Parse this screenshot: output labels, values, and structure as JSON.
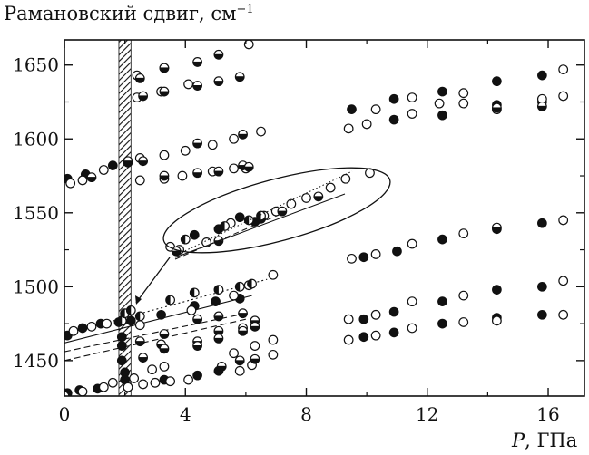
{
  "chart_data": {
    "type": "scatter",
    "ylabel_text": "Рамановский сдвиг, см",
    "ylabel_sup": "−1",
    "xlabel_var": "P",
    "xlabel_unit": ", ГПа",
    "xlim": [
      0,
      17.2
    ],
    "ylim": [
      1426,
      1667
    ],
    "x_ticks": [
      0,
      4,
      8,
      12,
      16
    ],
    "y_ticks": [
      1450,
      1500,
      1550,
      1600,
      1650
    ],
    "x_tick_labels": [
      "0",
      "4",
      "8",
      "12",
      "16"
    ],
    "y_tick_labels": [
      "1450",
      "1500",
      "1550",
      "1600",
      "1650"
    ],
    "shaded_band": [
      1.8,
      2.2
    ],
    "grid": false,
    "marker_styles": [
      "filled",
      "open",
      "half-horizontal",
      "half-vertical"
    ],
    "series": [
      {
        "style": "filled",
        "points": [
          [
            0.1,
            1428
          ],
          [
            0.5,
            1430
          ],
          [
            1.1,
            1431
          ],
          [
            2.0,
            1437
          ],
          [
            3.3,
            1437
          ],
          [
            4.4,
            1440
          ],
          [
            5.1,
            1443
          ],
          [
            0.1,
            1467
          ],
          [
            0.6,
            1472
          ],
          [
            1.2,
            1475
          ],
          [
            1.8,
            1476
          ],
          [
            2.2,
            1477
          ],
          [
            3.2,
            1481
          ],
          [
            4.3,
            1487
          ],
          [
            5.0,
            1490
          ],
          [
            5.8,
            1492
          ],
          [
            0.1,
            1573
          ],
          [
            0.7,
            1576
          ],
          [
            1.6,
            1582
          ],
          [
            2.1,
            1584
          ],
          [
            1.9,
            1466
          ],
          [
            1.9,
            1460
          ],
          [
            1.9,
            1450
          ],
          [
            2.0,
            1442
          ],
          [
            9.5,
            1620
          ],
          [
            10.9,
            1627
          ],
          [
            12.5,
            1632
          ],
          [
            14.3,
            1639
          ],
          [
            15.8,
            1643
          ],
          [
            10.9,
            1613
          ],
          [
            12.5,
            1616
          ],
          [
            14.3,
            1623
          ],
          [
            15.8,
            1625
          ],
          [
            9.9,
            1520
          ],
          [
            11.0,
            1524
          ],
          [
            12.5,
            1532
          ],
          [
            14.3,
            1539
          ],
          [
            15.8,
            1543
          ],
          [
            9.9,
            1478
          ],
          [
            10.9,
            1483
          ],
          [
            12.5,
            1490
          ],
          [
            14.3,
            1498
          ],
          [
            15.8,
            1500
          ],
          [
            9.9,
            1466
          ],
          [
            10.9,
            1469
          ],
          [
            12.5,
            1475
          ],
          [
            14.3,
            1479
          ],
          [
            15.8,
            1481
          ],
          [
            4.3,
            1535
          ],
          [
            5.1,
            1539
          ],
          [
            5.8,
            1547
          ],
          [
            6.3,
            1544
          ]
        ]
      },
      {
        "style": "open",
        "points": [
          [
            0.0,
            1426
          ],
          [
            0.6,
            1429
          ],
          [
            1.3,
            1432
          ],
          [
            1.6,
            1435
          ],
          [
            2.1,
            1432
          ],
          [
            2.6,
            1434
          ],
          [
            3.0,
            1435
          ],
          [
            3.5,
            1436
          ],
          [
            4.1,
            1437
          ],
          [
            5.8,
            1443
          ],
          [
            6.2,
            1447
          ],
          [
            6.9,
            1454
          ],
          [
            2.3,
            1438
          ],
          [
            2.9,
            1444
          ],
          [
            3.3,
            1446
          ],
          [
            5.6,
            1455
          ],
          [
            6.3,
            1460
          ],
          [
            6.9,
            1464
          ],
          [
            0.3,
            1470
          ],
          [
            0.9,
            1473
          ],
          [
            1.4,
            1475
          ],
          [
            4.2,
            1484
          ],
          [
            5.6,
            1494
          ],
          [
            6.1,
            1501
          ],
          [
            6.9,
            1508
          ],
          [
            2.5,
            1474
          ],
          [
            0.2,
            1570
          ],
          [
            0.6,
            1572
          ],
          [
            1.3,
            1579
          ],
          [
            2.5,
            1572
          ],
          [
            3.3,
            1573
          ],
          [
            3.9,
            1575
          ],
          [
            4.9,
            1578
          ],
          [
            5.6,
            1580
          ],
          [
            6.0,
            1580
          ],
          [
            2.5,
            1587
          ],
          [
            3.3,
            1589
          ],
          [
            4.0,
            1592
          ],
          [
            4.9,
            1596
          ],
          [
            5.6,
            1600
          ],
          [
            6.5,
            1605
          ],
          [
            2.4,
            1628
          ],
          [
            3.2,
            1632
          ],
          [
            4.1,
            1637
          ],
          [
            2.4,
            1643
          ],
          [
            3.3,
            1648
          ],
          [
            6.1,
            1664
          ],
          [
            9.4,
            1607
          ],
          [
            10.0,
            1610
          ],
          [
            10.3,
            1620
          ],
          [
            11.5,
            1617
          ],
          [
            11.5,
            1628
          ],
          [
            12.4,
            1624
          ],
          [
            13.2,
            1624
          ],
          [
            13.2,
            1631
          ],
          [
            14.3,
            1620
          ],
          [
            15.8,
            1627
          ],
          [
            16.5,
            1629
          ],
          [
            16.5,
            1647
          ],
          [
            9.5,
            1519
          ],
          [
            10.3,
            1522
          ],
          [
            11.5,
            1529
          ],
          [
            13.2,
            1536
          ],
          [
            16.5,
            1545
          ],
          [
            9.4,
            1478
          ],
          [
            10.3,
            1481
          ],
          [
            11.5,
            1490
          ],
          [
            13.2,
            1494
          ],
          [
            16.5,
            1504
          ],
          [
            9.4,
            1464
          ],
          [
            10.3,
            1467
          ],
          [
            11.5,
            1472
          ],
          [
            13.2,
            1476
          ],
          [
            14.3,
            1477
          ],
          [
            16.5,
            1481
          ],
          [
            3.5,
            1527
          ],
          [
            3.8,
            1525
          ],
          [
            4.7,
            1530
          ],
          [
            5.5,
            1543
          ],
          [
            6.6,
            1548
          ],
          [
            7.0,
            1551
          ],
          [
            7.5,
            1556
          ],
          [
            8.0,
            1560
          ],
          [
            8.8,
            1567
          ],
          [
            9.3,
            1573
          ],
          [
            10.1,
            1577
          ]
        ]
      },
      {
        "style": "half-horizontal",
        "points": [
          [
            2.5,
            1641
          ],
          [
            3.3,
            1648
          ],
          [
            4.4,
            1652
          ],
          [
            5.1,
            1657
          ],
          [
            5.8,
            1642
          ],
          [
            4.4,
            1636
          ],
          [
            5.1,
            1639
          ],
          [
            2.6,
            1629
          ],
          [
            3.3,
            1632
          ],
          [
            2.1,
            1585
          ],
          [
            2.6,
            1585
          ],
          [
            4.4,
            1597
          ],
          [
            5.9,
            1603
          ],
          [
            3.3,
            1575
          ],
          [
            4.4,
            1577
          ],
          [
            5.1,
            1578
          ],
          [
            5.9,
            1582
          ],
          [
            6.1,
            1581
          ],
          [
            0.9,
            1574
          ],
          [
            2.5,
            1463
          ],
          [
            3.3,
            1468
          ],
          [
            4.4,
            1478
          ],
          [
            5.1,
            1480
          ],
          [
            5.9,
            1482
          ],
          [
            3.2,
            1461
          ],
          [
            4.4,
            1463
          ],
          [
            5.1,
            1470
          ],
          [
            5.9,
            1472
          ],
          [
            6.3,
            1477
          ],
          [
            2.6,
            1452
          ],
          [
            3.3,
            1458
          ],
          [
            4.4,
            1460
          ],
          [
            5.1,
            1465
          ],
          [
            5.9,
            1470
          ],
          [
            6.3,
            1473
          ],
          [
            5.2,
            1446
          ],
          [
            5.8,
            1450
          ],
          [
            6.3,
            1451
          ],
          [
            14.3,
            1540
          ],
          [
            15.8,
            1622
          ],
          [
            14.3,
            1621
          ],
          [
            3.7,
            1524
          ],
          [
            5.1,
            1531
          ],
          [
            6.5,
            1546
          ],
          [
            7.2,
            1551
          ],
          [
            8.4,
            1561
          ]
        ]
      },
      {
        "style": "half-vertical",
        "points": [
          [
            1.9,
            1477
          ],
          [
            2.0,
            1482
          ],
          [
            2.2,
            1484
          ],
          [
            3.5,
            1491
          ],
          [
            4.3,
            1496
          ],
          [
            5.1,
            1498
          ],
          [
            5.8,
            1500
          ],
          [
            6.2,
            1502
          ],
          [
            2.5,
            1480
          ],
          [
            6.1,
            1545
          ],
          [
            5.3,
            1541
          ],
          [
            4.0,
            1532
          ],
          [
            6.5,
            1548
          ]
        ]
      }
    ]
  }
}
